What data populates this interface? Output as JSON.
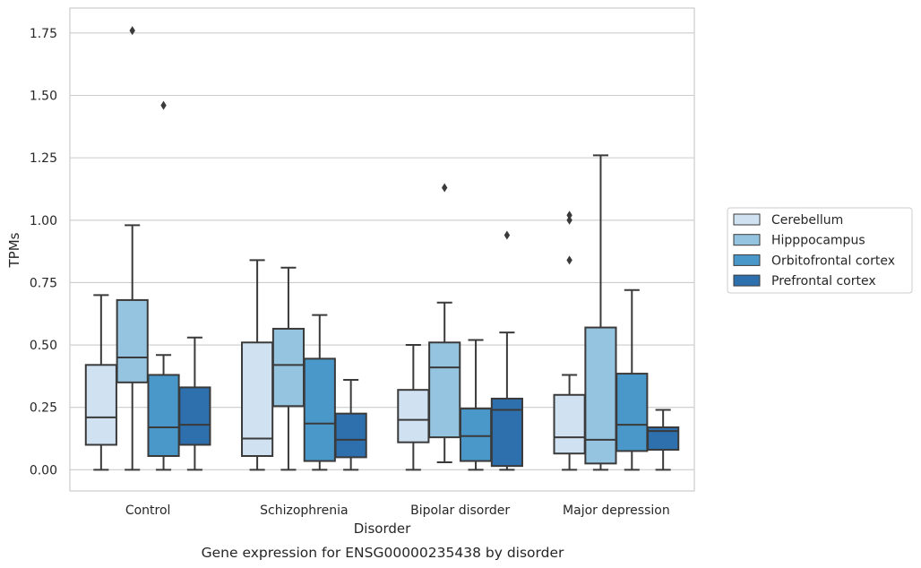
{
  "chart_data": {
    "type": "box",
    "title": "",
    "caption": "Gene expression for ENSG00000235438 by disorder",
    "xlabel": "Disorder",
    "ylabel": "TPMs",
    "ylim": [
      -0.085,
      1.85
    ],
    "yticks": [
      0.0,
      0.25,
      0.5,
      0.75,
      1.0,
      1.25,
      1.5,
      1.75
    ],
    "ytick_labels": [
      "0.00",
      "0.25",
      "0.50",
      "0.75",
      "1.00",
      "1.25",
      "1.50",
      "1.75"
    ],
    "grid": "horizontal",
    "legend_position": "right",
    "categories": [
      "Control",
      "Schizophrenia",
      "Bipolar disorder",
      "Major depression"
    ],
    "series": [
      {
        "name": "Cerebellum",
        "color": "#d0e1f2",
        "boxes": [
          {
            "whisker_low": 0.0,
            "q1": 0.1,
            "median": 0.21,
            "q3": 0.42,
            "whisker_high": 0.7,
            "outliers": []
          },
          {
            "whisker_low": 0.0,
            "q1": 0.055,
            "median": 0.125,
            "q3": 0.51,
            "whisker_high": 0.84,
            "outliers": []
          },
          {
            "whisker_low": 0.0,
            "q1": 0.11,
            "median": 0.2,
            "q3": 0.32,
            "whisker_high": 0.5,
            "outliers": []
          },
          {
            "whisker_low": 0.0,
            "q1": 0.065,
            "median": 0.13,
            "q3": 0.3,
            "whisker_high": 0.38,
            "outliers": [
              0.84,
              1.0,
              1.02
            ]
          }
        ]
      },
      {
        "name": "Hipppocampus",
        "color": "#94c4df",
        "boxes": [
          {
            "whisker_low": 0.0,
            "q1": 0.35,
            "median": 0.45,
            "q3": 0.68,
            "whisker_high": 0.98,
            "outliers": [
              1.76
            ]
          },
          {
            "whisker_low": 0.0,
            "q1": 0.255,
            "median": 0.42,
            "q3": 0.565,
            "whisker_high": 0.81,
            "outliers": []
          },
          {
            "whisker_low": 0.03,
            "q1": 0.13,
            "median": 0.41,
            "q3": 0.51,
            "whisker_high": 0.67,
            "outliers": [
              1.13
            ]
          },
          {
            "whisker_low": 0.0,
            "q1": 0.025,
            "median": 0.12,
            "q3": 0.57,
            "whisker_high": 1.26,
            "outliers": []
          }
        ]
      },
      {
        "name": "Orbitofrontal cortex",
        "color": "#4a98c9",
        "boxes": [
          {
            "whisker_low": 0.0,
            "q1": 0.055,
            "median": 0.17,
            "q3": 0.38,
            "whisker_high": 0.46,
            "outliers": [
              1.46
            ]
          },
          {
            "whisker_low": 0.0,
            "q1": 0.035,
            "median": 0.185,
            "q3": 0.445,
            "whisker_high": 0.62,
            "outliers": []
          },
          {
            "whisker_low": 0.0,
            "q1": 0.035,
            "median": 0.135,
            "q3": 0.245,
            "whisker_high": 0.52,
            "outliers": []
          },
          {
            "whisker_low": 0.0,
            "q1": 0.075,
            "median": 0.18,
            "q3": 0.385,
            "whisker_high": 0.72,
            "outliers": []
          }
        ]
      },
      {
        "name": "Prefrontal cortex",
        "color": "#2e6fae",
        "boxes": [
          {
            "whisker_low": 0.0,
            "q1": 0.1,
            "median": 0.18,
            "q3": 0.33,
            "whisker_high": 0.53,
            "outliers": []
          },
          {
            "whisker_low": 0.0,
            "q1": 0.05,
            "median": 0.12,
            "q3": 0.225,
            "whisker_high": 0.36,
            "outliers": []
          },
          {
            "whisker_low": 0.0,
            "q1": 0.015,
            "median": 0.24,
            "q3": 0.285,
            "whisker_high": 0.55,
            "outliers": [
              0.94
            ]
          },
          {
            "whisker_low": 0.0,
            "q1": 0.08,
            "median": 0.155,
            "q3": 0.17,
            "whisker_high": 0.24,
            "outliers": []
          }
        ]
      }
    ]
  }
}
